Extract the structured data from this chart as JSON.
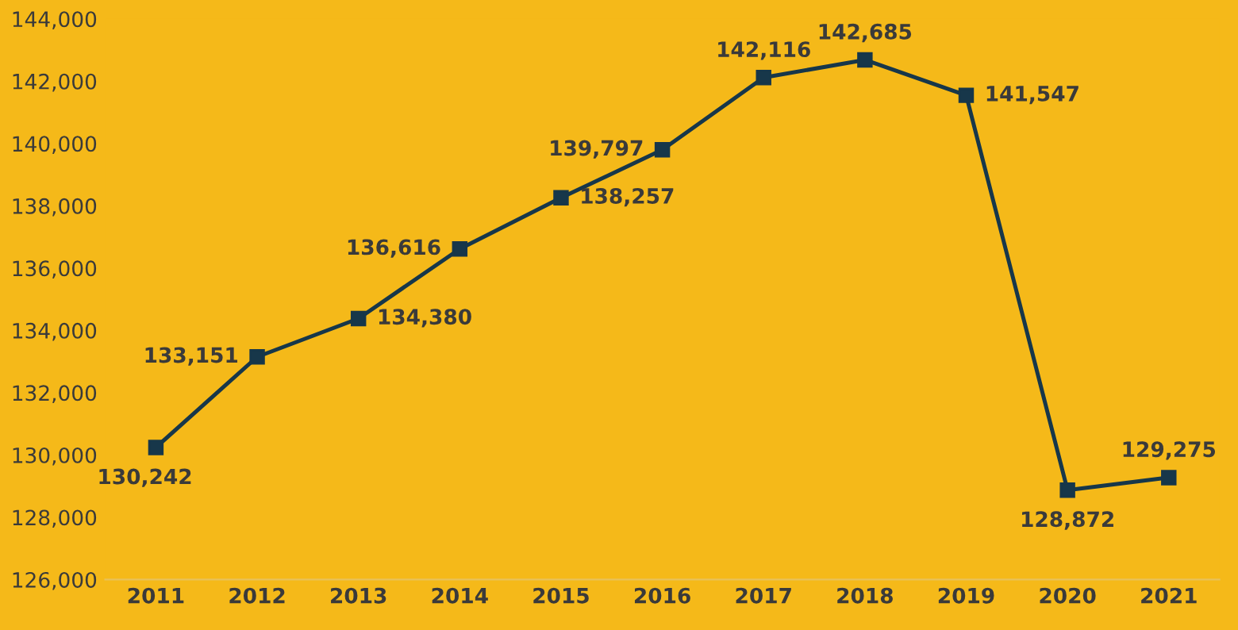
{
  "chart_data": {
    "type": "line",
    "categories": [
      "2011",
      "2012",
      "2013",
      "2014",
      "2015",
      "2016",
      "2017",
      "2018",
      "2019",
      "2020",
      "2021"
    ],
    "series": [
      {
        "color": "#17374a",
        "values": [
          130242,
          133151,
          134380,
          136616,
          138257,
          139797,
          142116,
          142685,
          141547,
          128872,
          129275
        ],
        "value_labels": [
          "130,242",
          "133,151",
          "134,380",
          "136,616",
          "138,257",
          "139,797",
          "142,116",
          "142,685",
          "141,547",
          "128,872",
          "129,275"
        ]
      }
    ],
    "ylim": [
      126000,
      144000
    ],
    "yticks": [
      {
        "value": 126000,
        "label": "126,000"
      },
      {
        "value": 128000,
        "label": "128,000"
      },
      {
        "value": 130000,
        "label": "130,000"
      },
      {
        "value": 132000,
        "label": "132,000"
      },
      {
        "value": 134000,
        "label": "134,000"
      },
      {
        "value": 136000,
        "label": "136,000"
      },
      {
        "value": 138000,
        "label": "138,000"
      },
      {
        "value": 140000,
        "label": "140,000"
      },
      {
        "value": 142000,
        "label": "142,000"
      },
      {
        "value": 144000,
        "label": "144,000"
      }
    ],
    "marker": "square",
    "line_style": "solid",
    "grid": false,
    "legend": false
  }
}
